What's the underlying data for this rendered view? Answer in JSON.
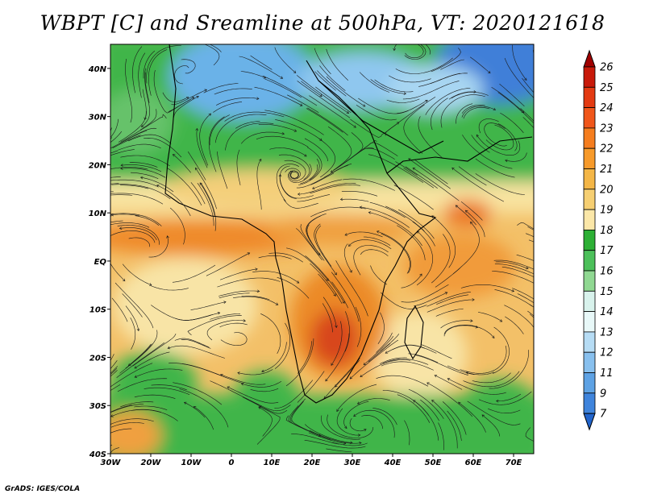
{
  "title": "WBPT [C] and Sreamline at 500hPa, VT: 2020121618",
  "credit": "GrADS: IGES/COLA",
  "map": {
    "lon_range": [
      -30,
      75
    ],
    "lat_range": [
      -40,
      45
    ],
    "lon_labels": [
      "30W",
      "20W",
      "10W",
      "0",
      "10E",
      "20E",
      "30E",
      "40E",
      "50E",
      "60E",
      "70E"
    ],
    "lat_labels": [
      "40N",
      "30N",
      "20N",
      "10N",
      "EQ",
      "10S",
      "20S",
      "30S",
      "40S"
    ]
  },
  "colorbar": {
    "labels": [
      "26",
      "25",
      "24",
      "23",
      "22",
      "21",
      "20",
      "19",
      "18",
      "17",
      "16",
      "15",
      "14",
      "13",
      "12",
      "11",
      "9",
      "7"
    ],
    "colors": [
      "#a00000",
      "#c81a0a",
      "#e33a12",
      "#f0561a",
      "#f57d1e",
      "#f79a2a",
      "#f4b646",
      "#f6cf72",
      "#fbe7a8",
      "#2db035",
      "#4cc05a",
      "#90d892",
      "#d8f2ec",
      "#e8f8f8",
      "#b6dcf4",
      "#88c0ee",
      "#5ea2e4",
      "#3f84dc",
      "#2164cc"
    ],
    "color_roles": [
      "top-arrow",
      "25-26",
      "24-25",
      "23-24",
      "22-23",
      "21-22",
      "20-21",
      "19-20",
      "18-19",
      "17-18",
      "16-17",
      "15-16",
      "14-15",
      "13-14",
      "12-13",
      "11-12",
      "9-11",
      "7-9",
      "bottom-arrow"
    ]
  }
}
